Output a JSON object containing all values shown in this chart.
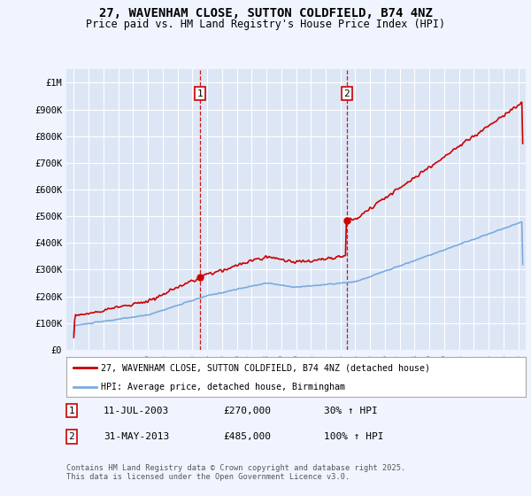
{
  "title": "27, WAVENHAM CLOSE, SUTTON COLDFIELD, B74 4NZ",
  "subtitle": "Price paid vs. HM Land Registry's House Price Index (HPI)",
  "background_color": "#f0f4ff",
  "plot_bg_color": "#dde6f5",
  "sale1_date": 2003.53,
  "sale1_price": 270000,
  "sale2_date": 2013.42,
  "sale2_price": 485000,
  "ylim": [
    0,
    1050000
  ],
  "xlim": [
    1994.5,
    2025.5
  ],
  "legend_line1": "27, WAVENHAM CLOSE, SUTTON COLDFIELD, B74 4NZ (detached house)",
  "legend_line2": "HPI: Average price, detached house, Birmingham",
  "table_entry1": [
    "1",
    "11-JUL-2003",
    "£270,000",
    "30% ↑ HPI"
  ],
  "table_entry2": [
    "2",
    "31-MAY-2013",
    "£485,000",
    "100% ↑ HPI"
  ],
  "footer": "Contains HM Land Registry data © Crown copyright and database right 2025.\nThis data is licensed under the Open Government Licence v3.0.",
  "ytick_labels": [
    "£0",
    "£100K",
    "£200K",
    "£300K",
    "£400K",
    "£500K",
    "£600K",
    "£700K",
    "£800K",
    "£900K",
    "£1M"
  ],
  "ytick_values": [
    0,
    100000,
    200000,
    300000,
    400000,
    500000,
    600000,
    700000,
    800000,
    900000,
    1000000
  ],
  "red_color": "#cc0000",
  "blue_color": "#7aabdc"
}
